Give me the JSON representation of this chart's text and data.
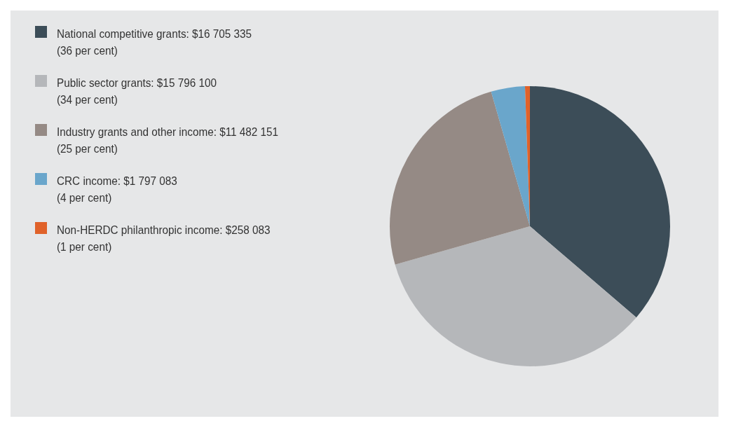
{
  "chart_data": {
    "type": "pie",
    "categories": [
      "National competitive grants",
      "Public sector grants",
      "Industry grants and other income",
      "CRC income",
      "Non-HERDC philanthropic income"
    ],
    "values": [
      16705335,
      15796100,
      11482151,
      1797083,
      258083
    ],
    "value_labels": [
      "$16 705 335\n(36 per cent)",
      "$15 796 100\n(34 per cent)",
      "$11 482 151\n(25 per cent)",
      "$1 797 083\n(4 per cent)",
      "$258 083\n(1 per cent)"
    ],
    "colors": [
      "#3c4d58",
      "#b5b7ba",
      "#958a85",
      "#6aa6cb",
      "#e0622a"
    ],
    "legend": "left"
  }
}
